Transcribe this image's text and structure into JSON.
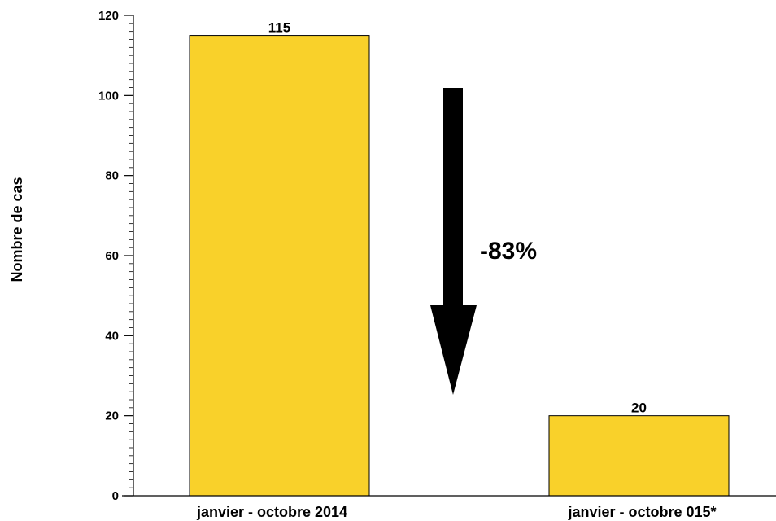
{
  "chart_data": {
    "type": "bar",
    "categories": [
      "janvier - octobre 2014",
      "janvier - octobre 015*"
    ],
    "values": [
      115,
      20
    ],
    "data_labels": [
      "115",
      "20"
    ],
    "title": "",
    "xlabel": "",
    "ylabel": "Nombre de cas",
    "ylim": [
      0,
      120
    ],
    "yticks": [
      0,
      20,
      40,
      60,
      80,
      100,
      120
    ],
    "grid": false,
    "legend": "none",
    "annotation": {
      "text": "-83%",
      "arrow": "down"
    }
  },
  "colors": {
    "bar": "#f9d12a",
    "bar_border": "#000000",
    "arrow": "#000000"
  }
}
